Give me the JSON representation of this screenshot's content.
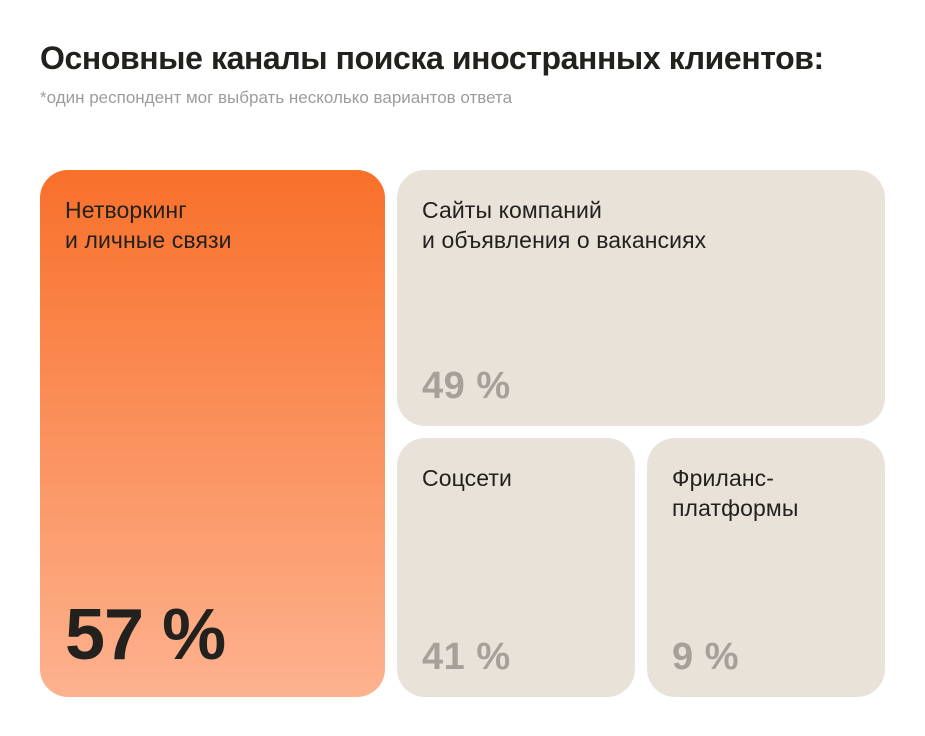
{
  "title": "Основные каналы поиска иностранных клиентов:",
  "subtitle": "*один респондент мог выбрать несколько вариантов ответа",
  "colors": {
    "background": "#FFFFFF",
    "card_orange_top": "#F8702A",
    "card_orange_bottom": "#FDB28F",
    "card_beige": "#E8E2D9",
    "value_gray": "#A5A098",
    "text_dark": "#22211E",
    "subtitle_gray": "#9C9C9C"
  },
  "cards": {
    "networking": {
      "label": "Нетворкинг\nи личные связи",
      "value": "57 %"
    },
    "websites": {
      "label": "Сайты компаний\nи объявления о вакансиях",
      "value": "49 %"
    },
    "social": {
      "label": "Соцсети",
      "value": "41 %"
    },
    "freelance": {
      "label": "Фриланс-\nплатформы",
      "value": "9 %"
    }
  },
  "chart_data": {
    "type": "bar",
    "variant": "proportional-cards",
    "title": "Основные каналы поиска иностранных клиентов",
    "note": "*один респондент мог выбрать несколько вариантов ответа",
    "categories": [
      "Нетворкинг и личные связи",
      "Сайты компаний и объявления о вакансиях",
      "Соцсети",
      "Фриланс-платформы"
    ],
    "values": [
      57,
      49,
      41,
      9
    ],
    "unit": "%",
    "highlight_category": "Нетворкинг и личные связи",
    "legend": false,
    "grid": false
  }
}
